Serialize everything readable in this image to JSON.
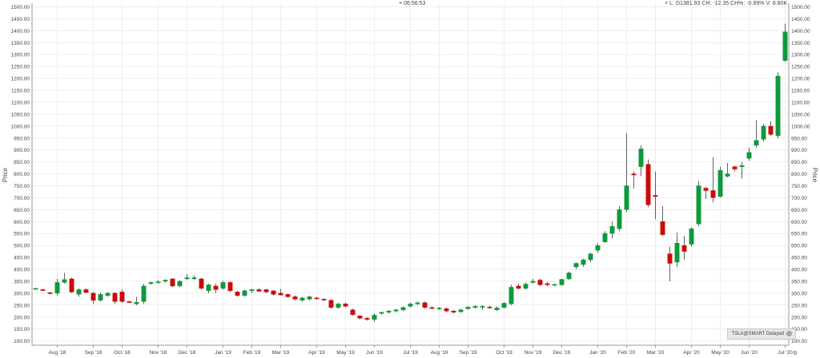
{
  "header": {
    "time": "06:56:53",
    "quote": "L: D1381.93 CH: -12.35 CH%: -0.89% V: 8.80K"
  },
  "badge": {
    "label": "TSLA@SMART Delayed"
  },
  "colors": {
    "up": "#0d9a3a",
    "down": "#cc0a0a",
    "grid": "#e4e4e4",
    "axis": "#999999"
  },
  "chart_data": {
    "type": "candlestick",
    "ylabel": "Price",
    "ylim": [
      82,
      1515
    ],
    "yticks": [
      100,
      150,
      200,
      250,
      300,
      350,
      400,
      450,
      500,
      550,
      600,
      650,
      700,
      750,
      800,
      850,
      900,
      950,
      1000,
      1050,
      1100,
      1150,
      1200,
      1250,
      1300,
      1350,
      1400,
      1450,
      1500
    ],
    "ytick_labels": [
      "100.00",
      "150.00",
      "200.00",
      "250.00",
      "300.00",
      "350.00",
      "400.00",
      "450.00",
      "500.00",
      "550.00",
      "600.00",
      "650.00",
      "700.00",
      "750.00",
      "800.00",
      "850.00",
      "900.00",
      "950.00",
      "1000.00",
      "1050.00",
      "1100.00",
      "1150.00",
      "1200.00",
      "1250.00",
      "1300.00",
      "1350.00",
      "1400.00",
      "1450.00",
      "1500.00"
    ],
    "xtick_labels": [
      "Aug '18",
      "Sep '18",
      "Oct '18",
      "Nov '18",
      "Dec '18",
      "Jan '19",
      "Feb '19",
      "Mar '19",
      "Apr '19",
      "May '19",
      "Jun '19",
      "Jul '19",
      "Aug '19",
      "Sep '19",
      "Oct '19",
      "Nov '19",
      "Dec '19",
      "Jan '20",
      "Feb '20",
      "Mar '20",
      "Apr '20",
      "May '20",
      "Jun '20",
      "Jul '20"
    ],
    "xtick_index": [
      3,
      8,
      12,
      17,
      21,
      26,
      30,
      34,
      39,
      43,
      47,
      52,
      56,
      60,
      65,
      69,
      73,
      78,
      82,
      86,
      91,
      95,
      99,
      104
    ],
    "candles": [
      {
        "o": 318,
        "h": 322,
        "l": 315,
        "c": 320
      },
      {
        "o": 315,
        "h": 318,
        "l": 310,
        "c": 312
      },
      {
        "o": 302,
        "h": 305,
        "l": 295,
        "c": 298
      },
      {
        "o": 300,
        "h": 360,
        "l": 290,
        "c": 345
      },
      {
        "o": 345,
        "h": 385,
        "l": 340,
        "c": 357
      },
      {
        "o": 360,
        "h": 365,
        "l": 300,
        "c": 305
      },
      {
        "o": 295,
        "h": 320,
        "l": 285,
        "c": 315
      },
      {
        "o": 315,
        "h": 320,
        "l": 300,
        "c": 303
      },
      {
        "o": 300,
        "h": 305,
        "l": 255,
        "c": 270
      },
      {
        "o": 270,
        "h": 302,
        "l": 265,
        "c": 295
      },
      {
        "o": 290,
        "h": 305,
        "l": 285,
        "c": 300
      },
      {
        "o": 300,
        "h": 305,
        "l": 255,
        "c": 265
      },
      {
        "o": 305,
        "h": 315,
        "l": 260,
        "c": 265
      },
      {
        "o": 265,
        "h": 268,
        "l": 258,
        "c": 262
      },
      {
        "o": 255,
        "h": 285,
        "l": 250,
        "c": 262
      },
      {
        "o": 265,
        "h": 340,
        "l": 255,
        "c": 330
      },
      {
        "o": 340,
        "h": 348,
        "l": 335,
        "c": 345
      },
      {
        "o": 345,
        "h": 355,
        "l": 340,
        "c": 348
      },
      {
        "o": 350,
        "h": 358,
        "l": 345,
        "c": 355
      },
      {
        "o": 360,
        "h": 362,
        "l": 325,
        "c": 330
      },
      {
        "o": 330,
        "h": 355,
        "l": 325,
        "c": 350
      },
      {
        "o": 360,
        "h": 380,
        "l": 355,
        "c": 365
      },
      {
        "o": 360,
        "h": 375,
        "l": 355,
        "c": 365
      },
      {
        "o": 360,
        "h": 365,
        "l": 315,
        "c": 320
      },
      {
        "o": 310,
        "h": 340,
        "l": 300,
        "c": 335
      },
      {
        "o": 330,
        "h": 340,
        "l": 300,
        "c": 315
      },
      {
        "o": 320,
        "h": 352,
        "l": 315,
        "c": 345
      },
      {
        "o": 345,
        "h": 350,
        "l": 305,
        "c": 310
      },
      {
        "o": 305,
        "h": 310,
        "l": 285,
        "c": 290
      },
      {
        "o": 290,
        "h": 315,
        "l": 285,
        "c": 310
      },
      {
        "o": 310,
        "h": 318,
        "l": 300,
        "c": 315
      },
      {
        "o": 315,
        "h": 320,
        "l": 305,
        "c": 308
      },
      {
        "o": 315,
        "h": 318,
        "l": 300,
        "c": 305
      },
      {
        "o": 310,
        "h": 312,
        "l": 290,
        "c": 295
      },
      {
        "o": 300,
        "h": 318,
        "l": 290,
        "c": 292
      },
      {
        "o": 295,
        "h": 298,
        "l": 280,
        "c": 285
      },
      {
        "o": 285,
        "h": 290,
        "l": 270,
        "c": 275
      },
      {
        "o": 270,
        "h": 285,
        "l": 265,
        "c": 280
      },
      {
        "o": 275,
        "h": 290,
        "l": 270,
        "c": 285
      },
      {
        "o": 280,
        "h": 284,
        "l": 274,
        "c": 276
      },
      {
        "o": 275,
        "h": 278,
        "l": 268,
        "c": 271
      },
      {
        "o": 270,
        "h": 275,
        "l": 235,
        "c": 240
      },
      {
        "o": 240,
        "h": 260,
        "l": 235,
        "c": 255
      },
      {
        "o": 255,
        "h": 260,
        "l": 240,
        "c": 245
      },
      {
        "o": 230,
        "h": 235,
        "l": 205,
        "c": 210
      },
      {
        "o": 205,
        "h": 208,
        "l": 190,
        "c": 195
      },
      {
        "o": 195,
        "h": 200,
        "l": 185,
        "c": 190
      },
      {
        "o": 190,
        "h": 215,
        "l": 180,
        "c": 208
      },
      {
        "o": 215,
        "h": 222,
        "l": 210,
        "c": 220
      },
      {
        "o": 220,
        "h": 230,
        "l": 215,
        "c": 225
      },
      {
        "o": 225,
        "h": 235,
        "l": 220,
        "c": 230
      },
      {
        "o": 230,
        "h": 245,
        "l": 225,
        "c": 240
      },
      {
        "o": 245,
        "h": 260,
        "l": 240,
        "c": 255
      },
      {
        "o": 255,
        "h": 265,
        "l": 250,
        "c": 260
      },
      {
        "o": 260,
        "h": 265,
        "l": 235,
        "c": 240
      },
      {
        "o": 240,
        "h": 245,
        "l": 232,
        "c": 236
      },
      {
        "o": 236,
        "h": 242,
        "l": 230,
        "c": 238
      },
      {
        "o": 235,
        "h": 240,
        "l": 220,
        "c": 225
      },
      {
        "o": 225,
        "h": 230,
        "l": 215,
        "c": 220
      },
      {
        "o": 222,
        "h": 235,
        "l": 218,
        "c": 230
      },
      {
        "o": 235,
        "h": 245,
        "l": 230,
        "c": 242
      },
      {
        "o": 240,
        "h": 250,
        "l": 235,
        "c": 245
      },
      {
        "o": 245,
        "h": 250,
        "l": 230,
        "c": 245
      },
      {
        "o": 242,
        "h": 248,
        "l": 235,
        "c": 240
      },
      {
        "o": 230,
        "h": 245,
        "l": 225,
        "c": 238
      },
      {
        "o": 240,
        "h": 262,
        "l": 235,
        "c": 258
      },
      {
        "o": 255,
        "h": 335,
        "l": 250,
        "c": 325
      },
      {
        "o": 330,
        "h": 340,
        "l": 315,
        "c": 320
      },
      {
        "o": 320,
        "h": 345,
        "l": 315,
        "c": 338
      },
      {
        "o": 345,
        "h": 360,
        "l": 340,
        "c": 350
      },
      {
        "o": 355,
        "h": 360,
        "l": 330,
        "c": 335
      },
      {
        "o": 340,
        "h": 348,
        "l": 330,
        "c": 335
      },
      {
        "o": 335,
        "h": 340,
        "l": 330,
        "c": 337
      },
      {
        "o": 335,
        "h": 360,
        "l": 330,
        "c": 358
      },
      {
        "o": 360,
        "h": 390,
        "l": 355,
        "c": 385
      },
      {
        "o": 410,
        "h": 430,
        "l": 400,
        "c": 425
      },
      {
        "o": 420,
        "h": 445,
        "l": 410,
        "c": 440
      },
      {
        "o": 440,
        "h": 470,
        "l": 430,
        "c": 465
      },
      {
        "o": 480,
        "h": 510,
        "l": 470,
        "c": 500
      },
      {
        "o": 515,
        "h": 560,
        "l": 510,
        "c": 550
      },
      {
        "o": 550,
        "h": 600,
        "l": 530,
        "c": 580
      },
      {
        "o": 570,
        "h": 665,
        "l": 560,
        "c": 650
      },
      {
        "o": 650,
        "h": 970,
        "l": 640,
        "c": 750
      },
      {
        "o": 800,
        "h": 810,
        "l": 738,
        "c": 795
      },
      {
        "o": 830,
        "h": 920,
        "l": 790,
        "c": 905
      },
      {
        "o": 840,
        "h": 860,
        "l": 660,
        "c": 670
      },
      {
        "o": 710,
        "h": 810,
        "l": 610,
        "c": 705
      },
      {
        "o": 600,
        "h": 665,
        "l": 540,
        "c": 545
      },
      {
        "o": 465,
        "h": 495,
        "l": 350,
        "c": 425
      },
      {
        "o": 430,
        "h": 555,
        "l": 410,
        "c": 510
      },
      {
        "o": 500,
        "h": 540,
        "l": 440,
        "c": 475
      },
      {
        "o": 505,
        "h": 575,
        "l": 495,
        "c": 570
      },
      {
        "o": 590,
        "h": 770,
        "l": 580,
        "c": 750
      },
      {
        "o": 740,
        "h": 745,
        "l": 695,
        "c": 730
      },
      {
        "o": 730,
        "h": 870,
        "l": 680,
        "c": 700
      },
      {
        "o": 705,
        "h": 830,
        "l": 700,
        "c": 815
      },
      {
        "o": 790,
        "h": 845,
        "l": 785,
        "c": 800
      },
      {
        "o": 830,
        "h": 835,
        "l": 810,
        "c": 820
      },
      {
        "o": 830,
        "h": 850,
        "l": 780,
        "c": 835
      },
      {
        "o": 865,
        "h": 910,
        "l": 855,
        "c": 890
      },
      {
        "o": 920,
        "h": 1025,
        "l": 910,
        "c": 940
      },
      {
        "o": 945,
        "h": 1010,
        "l": 935,
        "c": 1000
      },
      {
        "o": 1000,
        "h": 1020,
        "l": 960,
        "c": 965
      },
      {
        "o": 960,
        "h": 1225,
        "l": 950,
        "c": 1210
      },
      {
        "o": 1275,
        "h": 1430,
        "l": 1270,
        "c": 1395
      }
    ]
  }
}
